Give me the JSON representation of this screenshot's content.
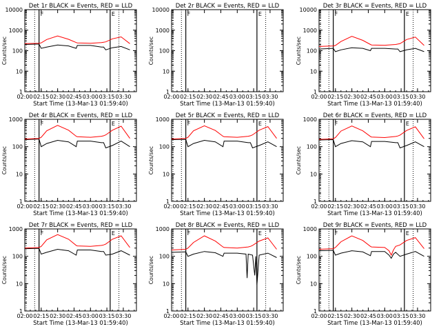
{
  "figure": {
    "xlabel": "Start Time (13-Mar-13 01:59:40)",
    "ylabel": "Counts/sec",
    "colors": {
      "events": "#000000",
      "lld": "#ff0000",
      "axes": "#000000",
      "background": "#ffffff"
    }
  },
  "chart_data": [
    {
      "type": "line",
      "title": "Det 1r BLACK = Events, RED = LLD",
      "xlabel": "Start Time (13-Mar-13 01:59:40)",
      "ylabel": "Counts/sec",
      "x_ticks": [
        "02:00",
        "02:15",
        "02:30",
        "02:45",
        "03:00",
        "03:15",
        "03:30"
      ],
      "y_ticks": [
        "1",
        "10",
        "100",
        "1000",
        "10000"
      ],
      "ylim": [
        1,
        10000
      ],
      "y_scale": "log",
      "has_data": true,
      "attenuator_lines": [
        {
          "time": "02:13",
          "label": "F"
        },
        {
          "time": "03:18",
          "label": "E"
        }
      ],
      "series": [
        {
          "color": "#000000",
          "x": [
            "02:00",
            "02:13",
            "02:15",
            "02:20",
            "02:30",
            "02:40",
            "02:47",
            "02:48",
            "03:00",
            "03:10",
            "03:12",
            "03:14",
            "03:20",
            "03:28",
            "03:36"
          ],
          "y": [
            200,
            210,
            130,
            150,
            190,
            170,
            130,
            180,
            180,
            150,
            150,
            110,
            140,
            160,
            110
          ]
        },
        {
          "color": "#ff0000",
          "x": [
            "02:00",
            "02:13",
            "02:15",
            "02:20",
            "02:30",
            "02:40",
            "02:47",
            "02:48",
            "03:00",
            "03:10",
            "03:12",
            "03:14",
            "03:20",
            "03:28",
            "03:36"
          ],
          "y": [
            220,
            230,
            240,
            350,
            520,
            360,
            250,
            240,
            230,
            250,
            260,
            270,
            380,
            470,
            220
          ]
        }
      ]
    },
    {
      "type": "line",
      "title": "Det 2r BLACK = Events, RED = LLD",
      "xlabel": "Start Time (13-Mar-13 01:59:40)",
      "ylabel": "Counts/sec",
      "x_ticks": [
        "02:00",
        "02:15",
        "02:30",
        "02:45",
        "03:00",
        "03:15",
        "03:30"
      ],
      "y_ticks": [
        "1",
        "10",
        "100",
        "1000",
        "10000"
      ],
      "ylim": [
        1,
        10000
      ],
      "y_scale": "log",
      "has_data": false,
      "attenuator_lines": [
        {
          "time": "02:13",
          "label": "F"
        },
        {
          "time": "03:18",
          "label": "E"
        }
      ],
      "series": []
    },
    {
      "type": "line",
      "title": "Det 3r BLACK = Events, RED = LLD",
      "xlabel": "Start Time (13-Mar-13 01:59:40)",
      "ylabel": "Counts/sec",
      "x_ticks": [
        "02:00",
        "02:15",
        "02:30",
        "02:45",
        "03:00",
        "03:15",
        "03:30"
      ],
      "y_ticks": [
        "1",
        "10",
        "100",
        "1000",
        "10000"
      ],
      "ylim": [
        1,
        10000
      ],
      "y_scale": "log",
      "has_data": true,
      "attenuator_lines": [
        {
          "time": "02:13",
          "label": "F"
        },
        {
          "time": "03:18",
          "label": "E"
        }
      ],
      "series": [
        {
          "color": "#000000",
          "x": [
            "02:00",
            "02:13",
            "02:15",
            "02:20",
            "02:30",
            "02:40",
            "02:47",
            "02:48",
            "03:00",
            "03:10",
            "03:12",
            "03:14",
            "03:20",
            "03:28",
            "03:36"
          ],
          "y": [
            120,
            130,
            90,
            110,
            140,
            130,
            100,
            130,
            130,
            120,
            120,
            90,
            110,
            130,
            90
          ]
        },
        {
          "color": "#ff0000",
          "x": [
            "02:00",
            "02:13",
            "02:15",
            "02:20",
            "02:30",
            "02:40",
            "02:47",
            "02:48",
            "03:00",
            "03:10",
            "03:12",
            "03:14",
            "03:20",
            "03:28",
            "03:36"
          ],
          "y": [
            160,
            170,
            180,
            280,
            500,
            320,
            200,
            190,
            185,
            200,
            210,
            220,
            350,
            460,
            180
          ]
        }
      ]
    },
    {
      "type": "line",
      "title": "Det 4r BLACK = Events, RED = LLD",
      "xlabel": "Start Time (13-Mar-13 01:59:40)",
      "ylabel": "Counts/sec",
      "x_ticks": [
        "02:00",
        "02:15",
        "02:30",
        "02:45",
        "03:00",
        "03:15",
        "03:30"
      ],
      "y_ticks": [
        "1",
        "10",
        "100",
        "1000"
      ],
      "ylim": [
        1,
        1000
      ],
      "y_scale": "log",
      "has_data": true,
      "attenuator_lines": [
        {
          "time": "02:13",
          "label": "F"
        },
        {
          "time": "03:18",
          "label": "E"
        }
      ],
      "series": [
        {
          "color": "#000000",
          "x": [
            "02:00",
            "02:13",
            "02:15",
            "02:20",
            "02:30",
            "02:40",
            "02:47",
            "02:48",
            "03:00",
            "03:10",
            "03:12",
            "03:14",
            "03:20",
            "03:28",
            "03:36"
          ],
          "y": [
            180,
            190,
            100,
            130,
            170,
            150,
            100,
            160,
            160,
            140,
            140,
            90,
            110,
            160,
            100
          ]
        },
        {
          "color": "#ff0000",
          "x": [
            "02:00",
            "02:13",
            "02:15",
            "02:20",
            "02:30",
            "02:40",
            "02:47",
            "02:48",
            "03:00",
            "03:10",
            "03:12",
            "03:14",
            "03:20",
            "03:28",
            "03:36"
          ],
          "y": [
            190,
            200,
            220,
            380,
            600,
            400,
            240,
            230,
            220,
            240,
            250,
            270,
            400,
            560,
            200
          ]
        }
      ]
    },
    {
      "type": "line",
      "title": "Det 5r BLACK = Events, RED = LLD",
      "xlabel": "Start Time (13-Mar-13 01:59:40)",
      "ylabel": "Counts/sec",
      "x_ticks": [
        "02:00",
        "02:15",
        "02:30",
        "02:45",
        "03:00",
        "03:15",
        "03:30"
      ],
      "y_ticks": [
        "1",
        "10",
        "100",
        "1000"
      ],
      "ylim": [
        1,
        1000
      ],
      "y_scale": "log",
      "has_data": true,
      "attenuator_lines": [
        {
          "time": "02:13",
          "label": "F"
        },
        {
          "time": "03:18",
          "label": "E"
        }
      ],
      "series": [
        {
          "color": "#000000",
          "x": [
            "02:00",
            "02:13",
            "02:15",
            "02:20",
            "02:30",
            "02:40",
            "02:47",
            "02:48",
            "03:00",
            "03:10",
            "03:12",
            "03:14",
            "03:20",
            "03:28",
            "03:36"
          ],
          "y": [
            180,
            185,
            100,
            130,
            170,
            150,
            100,
            160,
            160,
            140,
            140,
            90,
            110,
            150,
            100
          ]
        },
        {
          "color": "#ff0000",
          "x": [
            "02:00",
            "02:13",
            "02:15",
            "02:20",
            "02:30",
            "02:40",
            "02:47",
            "02:48",
            "03:00",
            "03:10",
            "03:12",
            "03:14",
            "03:20",
            "03:28",
            "03:36"
          ],
          "y": [
            190,
            200,
            220,
            380,
            580,
            390,
            240,
            230,
            220,
            240,
            250,
            270,
            400,
            540,
            200
          ]
        }
      ]
    },
    {
      "type": "line",
      "title": "Det 6r BLACK = Events, RED = LLD",
      "xlabel": "Start Time (13-Mar-13 01:59:40)",
      "ylabel": "Counts/sec",
      "x_ticks": [
        "02:00",
        "02:15",
        "02:30",
        "02:45",
        "03:00",
        "03:15",
        "03:30"
      ],
      "y_ticks": [
        "1",
        "10",
        "100",
        "1000"
      ],
      "ylim": [
        1,
        1000
      ],
      "y_scale": "log",
      "has_data": true,
      "attenuator_lines": [
        {
          "time": "02:13",
          "label": "F"
        },
        {
          "time": "03:18",
          "label": "E"
        }
      ],
      "series": [
        {
          "color": "#000000",
          "x": [
            "02:00",
            "02:13",
            "02:15",
            "02:20",
            "02:30",
            "02:40",
            "02:47",
            "02:48",
            "03:00",
            "03:10",
            "03:12",
            "03:14",
            "03:20",
            "03:28",
            "03:36"
          ],
          "y": [
            175,
            180,
            100,
            130,
            165,
            150,
            100,
            155,
            155,
            140,
            140,
            90,
            110,
            150,
            100
          ]
        },
        {
          "color": "#ff0000",
          "x": [
            "02:00",
            "02:13",
            "02:15",
            "02:20",
            "02:30",
            "02:40",
            "02:47",
            "02:48",
            "03:00",
            "03:10",
            "03:12",
            "03:14",
            "03:20",
            "03:28",
            "03:36"
          ],
          "y": [
            185,
            195,
            215,
            370,
            570,
            380,
            235,
            225,
            215,
            235,
            245,
            265,
            390,
            530,
            195
          ]
        }
      ]
    },
    {
      "type": "line",
      "title": "Det 7r BLACK = Events, RED = LLD",
      "xlabel": "Start Time (13-Mar-13 01:59:40)",
      "ylabel": "Counts/sec",
      "x_ticks": [
        "02:00",
        "02:15",
        "02:30",
        "02:45",
        "03:00",
        "03:15",
        "03:30"
      ],
      "y_ticks": [
        "1",
        "10",
        "100",
        "1000"
      ],
      "ylim": [
        1,
        1000
      ],
      "y_scale": "log",
      "has_data": true,
      "attenuator_lines": [
        {
          "time": "02:13",
          "label": "F"
        },
        {
          "time": "03:18",
          "label": "E"
        }
      ],
      "series": [
        {
          "color": "#000000",
          "x": [
            "02:00",
            "02:13",
            "02:15",
            "02:20",
            "02:30",
            "02:40",
            "02:47",
            "02:48",
            "03:00",
            "03:10",
            "03:12",
            "03:14",
            "03:20",
            "03:28",
            "03:36"
          ],
          "y": [
            190,
            195,
            120,
            140,
            180,
            160,
            110,
            170,
            170,
            150,
            150,
            110,
            120,
            160,
            110
          ]
        },
        {
          "color": "#ff0000",
          "x": [
            "02:00",
            "02:13",
            "02:15",
            "02:20",
            "02:30",
            "02:40",
            "02:47",
            "02:48",
            "03:00",
            "03:10",
            "03:12",
            "03:14",
            "03:20",
            "03:28",
            "03:36"
          ],
          "y": [
            200,
            210,
            230,
            400,
            620,
            420,
            250,
            240,
            230,
            250,
            260,
            280,
            420,
            560,
            210
          ]
        }
      ]
    },
    {
      "type": "line",
      "title": "Det 8r BLACK = Events, RED = LLD",
      "xlabel": "Start Time (13-Mar-13 01:59:40)",
      "ylabel": "Counts/sec",
      "x_ticks": [
        "02:00",
        "02:15",
        "02:30",
        "02:45",
        "03:00",
        "03:15",
        "03:30"
      ],
      "y_ticks": [
        "1",
        "10",
        "100",
        "1000"
      ],
      "ylim": [
        1,
        1000
      ],
      "y_scale": "log",
      "has_data": true,
      "attenuator_lines": [
        {
          "time": "02:13",
          "label": "F"
        },
        {
          "time": "03:18",
          "label": "E"
        }
      ],
      "series": [
        {
          "color": "#000000",
          "x": [
            "02:00",
            "02:13",
            "02:15",
            "02:20",
            "02:30",
            "02:40",
            "02:47",
            "02:48",
            "03:00",
            "03:08",
            "03:09",
            "03:10",
            "03:14",
            "03:16",
            "03:17",
            "03:18",
            "03:20",
            "03:28",
            "03:36"
          ],
          "y": [
            140,
            145,
            100,
            120,
            150,
            135,
            100,
            130,
            130,
            120,
            16,
            120,
            110,
            20,
            100,
            9,
            110,
            130,
            90
          ]
        },
        {
          "color": "#ff0000",
          "x": [
            "02:00",
            "02:13",
            "02:15",
            "02:20",
            "02:30",
            "02:40",
            "02:47",
            "02:48",
            "03:00",
            "03:10",
            "03:12",
            "03:14",
            "03:20",
            "03:28",
            "03:36"
          ],
          "y": [
            170,
            180,
            200,
            320,
            560,
            360,
            220,
            210,
            200,
            220,
            230,
            250,
            360,
            470,
            180
          ]
        }
      ]
    },
    {
      "type": "line",
      "title": "Det 9r BLACK = Events, RED = LLD",
      "xlabel": "Start Time (13-Mar-13 01:59:40)",
      "ylabel": "Counts/sec",
      "x_ticks": [
        "02:00",
        "02:15",
        "02:30",
        "02:45",
        "03:00",
        "03:15",
        "03:30"
      ],
      "y_ticks": [
        "1",
        "10",
        "100",
        "1000"
      ],
      "ylim": [
        1,
        1000
      ],
      "y_scale": "log",
      "has_data": true,
      "attenuator_lines": [
        {
          "time": "02:13",
          "label": "F"
        },
        {
          "time": "03:18",
          "label": "E"
        }
      ],
      "series": [
        {
          "color": "#000000",
          "x": [
            "02:00",
            "02:13",
            "02:15",
            "02:20",
            "02:30",
            "02:40",
            "02:47",
            "02:48",
            "03:00",
            "03:04",
            "03:06",
            "03:08",
            "03:10",
            "03:14",
            "03:20",
            "03:28",
            "03:36"
          ],
          "y": [
            160,
            165,
            110,
            130,
            160,
            145,
            105,
            150,
            150,
            110,
            85,
            120,
            140,
            100,
            120,
            150,
            100
          ]
        },
        {
          "color": "#ff0000",
          "x": [
            "02:00",
            "02:13",
            "02:15",
            "02:20",
            "02:30",
            "02:40",
            "02:47",
            "02:48",
            "03:00",
            "03:04",
            "03:06",
            "03:08",
            "03:10",
            "03:14",
            "03:20",
            "03:28",
            "03:36"
          ],
          "y": [
            180,
            190,
            210,
            340,
            560,
            380,
            230,
            220,
            210,
            160,
            110,
            170,
            230,
            260,
            380,
            480,
            190
          ]
        }
      ]
    }
  ]
}
